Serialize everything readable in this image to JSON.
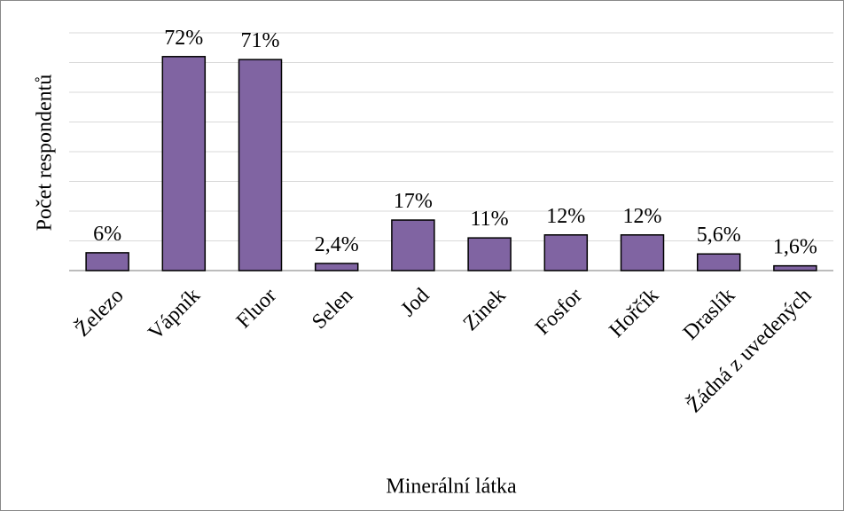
{
  "chart_data": {
    "type": "bar",
    "x_label": "Minerální látka",
    "y_label": "Počet respondentů",
    "categories": [
      "Železo",
      "Vápník",
      "Fluor",
      "Selen",
      "Jod",
      "Zinek",
      "Fosfor",
      "Hořčík",
      "Draslík",
      "Žádná z uvedených"
    ],
    "values": [
      6,
      72,
      71,
      2.4,
      17,
      11,
      12,
      12,
      5.6,
      1.6
    ],
    "value_labels": [
      "6%",
      "72%",
      "71%",
      "2,4%",
      "17%",
      "11%",
      "12%",
      "12%",
      "5,6%",
      "1,6%"
    ],
    "color": "#8064a2",
    "ylim": [
      0,
      80
    ],
    "yticks": [
      0,
      10,
      20,
      30,
      40,
      50,
      60,
      70,
      80
    ],
    "grid": true
  }
}
